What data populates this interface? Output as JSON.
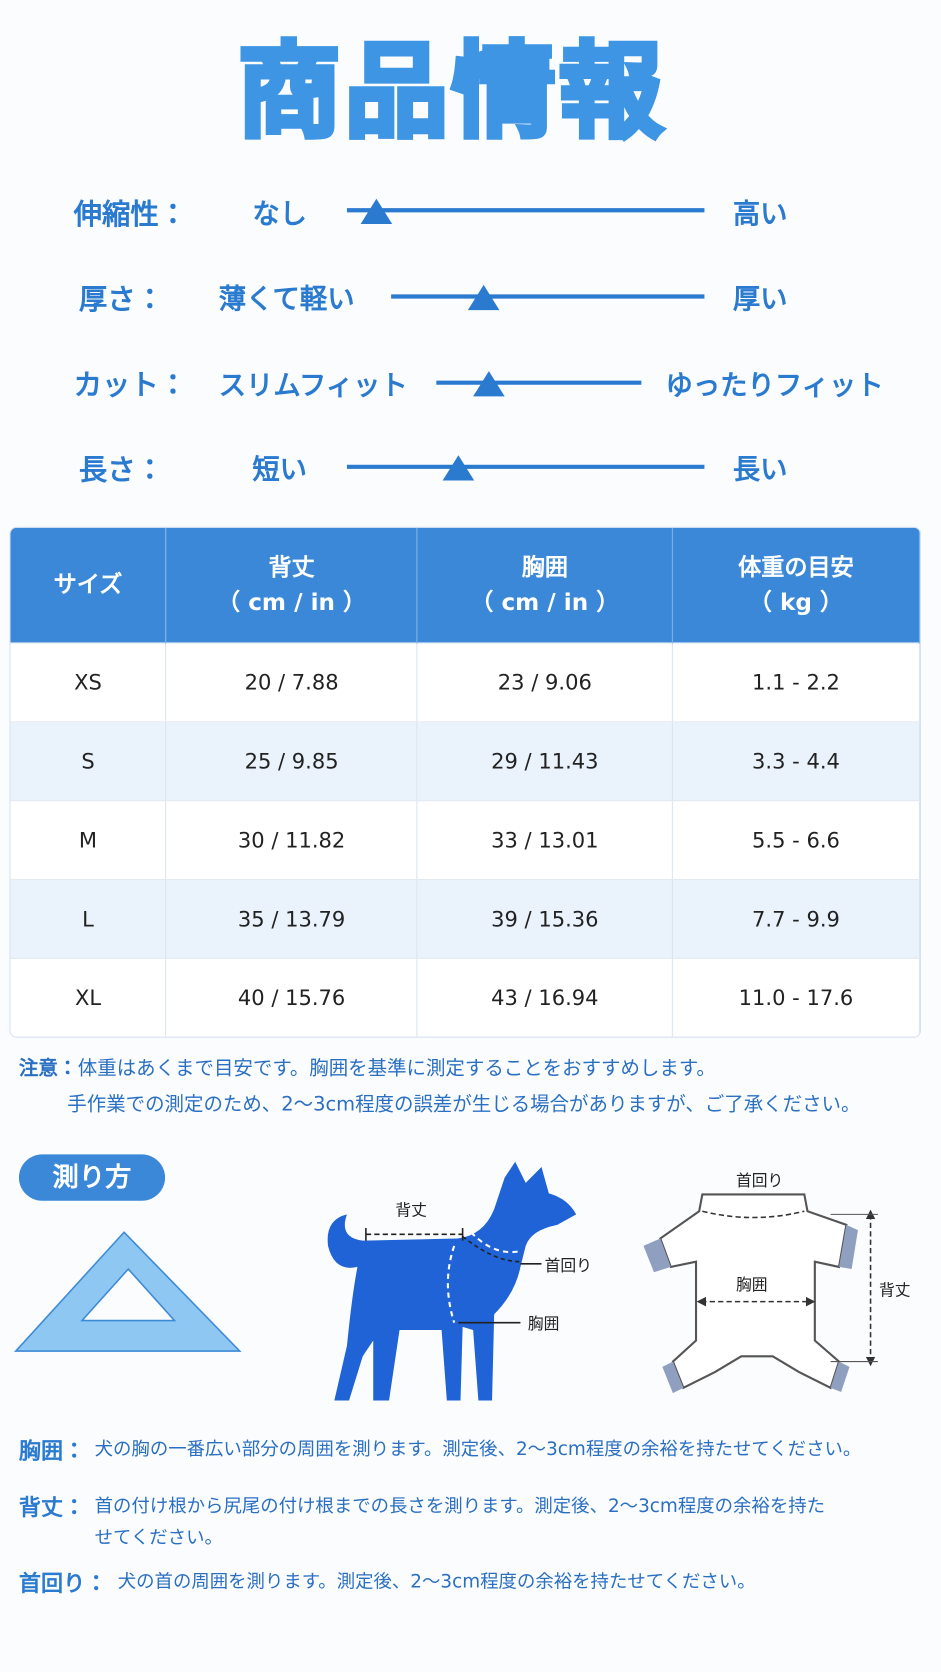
{
  "header": {
    "title": "商品情報"
  },
  "attributes": [
    {
      "label": "伸縮性：",
      "low": "なし",
      "high": "高い"
    },
    {
      "label": "厚さ：",
      "low": "薄くて軽い",
      "high": "厚い"
    },
    {
      "label": "カット：",
      "low": "スリムフィット",
      "high": "ゆったりフィット"
    },
    {
      "label": "長さ：",
      "low": "短い",
      "high": "長い"
    }
  ],
  "size_table": {
    "columns": [
      {
        "name": "サイズ"
      },
      {
        "name": "背丈",
        "unit": "（ cm / in ）"
      },
      {
        "name": "胸囲",
        "unit": "（ cm / in ）"
      },
      {
        "name": "体重の目安",
        "unit": "（ kg ）"
      }
    ],
    "rows": [
      [
        "XS",
        "20 / 7.88",
        "23 / 9.06",
        "1.1 - 2.2"
      ],
      [
        "S",
        "25 / 9.85",
        "29 / 11.43",
        "3.3 - 4.4"
      ],
      [
        "M",
        "30 / 11.82",
        "33 / 13.01",
        "5.5 - 6.6"
      ],
      [
        "L",
        "35 / 13.79",
        "39 / 15.36",
        "7.7 - 9.9"
      ],
      [
        "XL",
        "40 / 15.76",
        "43 / 16.94",
        "11.0 - 17.6"
      ]
    ]
  },
  "notes": {
    "label": "注意：",
    "lines": [
      "体重はあくまで目安です。胸囲を基準に測定することをおすすめします。",
      "手作業での測定のため、2〜3cm程度の誤差が生じる場合がありますが、ご了承ください。"
    ]
  },
  "how_to_measure": {
    "title": "測り方",
    "dog_labels": {
      "back_length": "背丈",
      "neck": "首回り",
      "chest": "胸囲"
    },
    "garment_labels": {
      "neck": "首回り",
      "chest": "胸囲",
      "back_length": "背丈"
    }
  },
  "definitions": [
    {
      "term": "胸囲：",
      "text": "犬の胸の一番広い部分の周囲を測ります。測定後、2〜3cm程度の余裕を持たせてください。"
    },
    {
      "term": "背丈：",
      "text": "首の付け根から尻尾の付け根までの長さを測ります。測定後、2〜3cm程度の余裕を持たせてください。"
    },
    {
      "term": "首回り：",
      "text": "犬の首の周囲を測ります。測定後、2〜3cm程度の余裕を持たせてください。"
    }
  ]
}
